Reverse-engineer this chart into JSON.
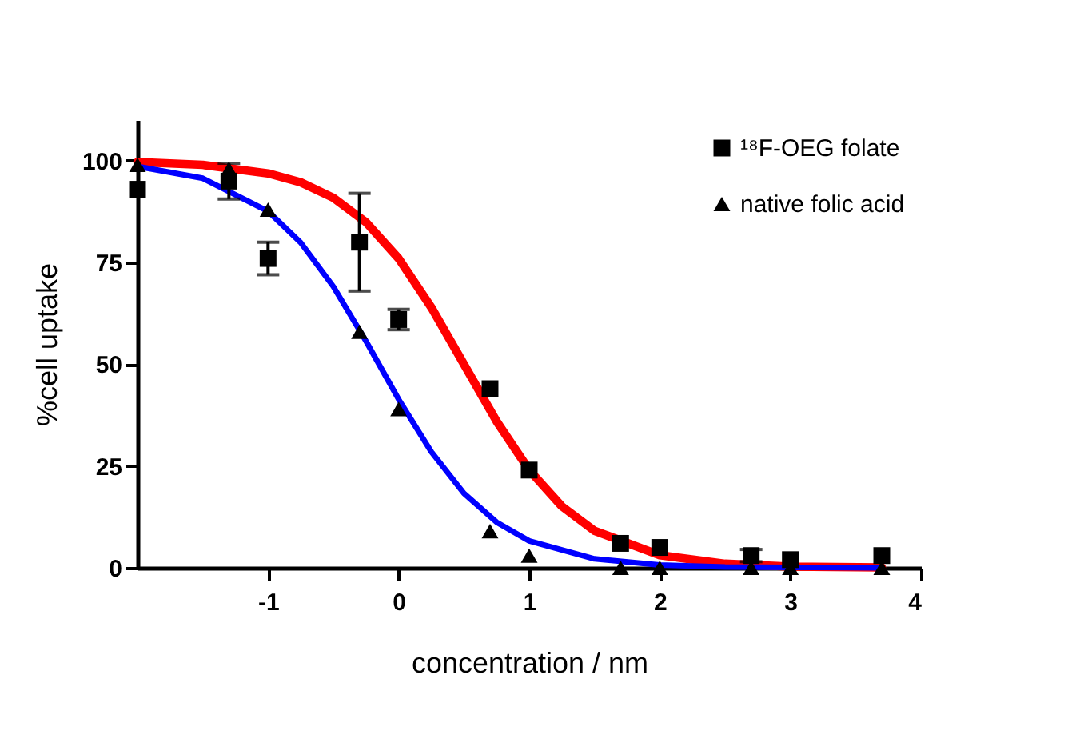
{
  "chart_data": {
    "type": "scatter",
    "xlabel": "concentration / nm",
    "ylabel": "%cell uptake",
    "xlim": [
      -2,
      4
    ],
    "xticks": [
      -1,
      0,
      1,
      2,
      3,
      4
    ],
    "ylim": [
      0,
      110
    ],
    "yticks": [
      0,
      25,
      50,
      75,
      100
    ],
    "grid": false,
    "legend": "top right",
    "series": [
      {
        "type": "line",
        "color": "#ff0000",
        "x": [
          -2,
          -1.5,
          -1,
          -0.75,
          -0.5,
          -0.25,
          0,
          0.25,
          0.5,
          0.75,
          1,
          1.25,
          1.5,
          2,
          2.5,
          3,
          3.7
        ],
        "values": [
          99.7,
          99.0,
          96.9,
          94.7,
          90.9,
          84.9,
          76.0,
          64.0,
          50,
          36.0,
          24.0,
          15.1,
          9.1,
          3.1,
          1.0,
          0.3,
          0.1
        ]
      },
      {
        "type": "line",
        "color": "#0000ff",
        "x": [
          -2,
          -1.5,
          -1,
          -0.75,
          -0.5,
          -0.25,
          0,
          0.25,
          0.5,
          0.75,
          1,
          1.5,
          2,
          2.5,
          3,
          3.7
        ],
        "values": [
          98.6,
          95.7,
          87.6,
          79.9,
          69.1,
          55.7,
          41.4,
          28.5,
          18.3,
          11.2,
          6.6,
          2.2,
          0.7,
          0.2,
          0.1,
          0.0
        ]
      },
      {
        "type": "scatter",
        "name": "¹⁸F-OEG folate",
        "color": "#000000",
        "marker": "square",
        "x": [
          -2,
          -1.3,
          -1,
          -0.3,
          0,
          0.7,
          1,
          1.7,
          2,
          2.7,
          3,
          3.7
        ],
        "values": [
          93,
          95,
          76,
          80,
          61,
          44,
          24,
          6,
          5,
          3,
          2,
          3
        ],
        "errors": [
          null,
          4.4,
          4,
          12,
          2.5,
          null,
          null,
          null,
          null,
          1.5,
          null,
          null
        ]
      },
      {
        "name": "native folic acid",
        "color": "#000000",
        "marker": "triangle",
        "x": [
          -2,
          -1.3,
          -1,
          -0.3,
          0,
          0.7,
          1,
          1.7,
          2,
          2.7,
          3,
          3.7
        ],
        "values": [
          99,
          98,
          88,
          58,
          39,
          9,
          3,
          0,
          0,
          0,
          0,
          0
        ]
      }
    ]
  }
}
